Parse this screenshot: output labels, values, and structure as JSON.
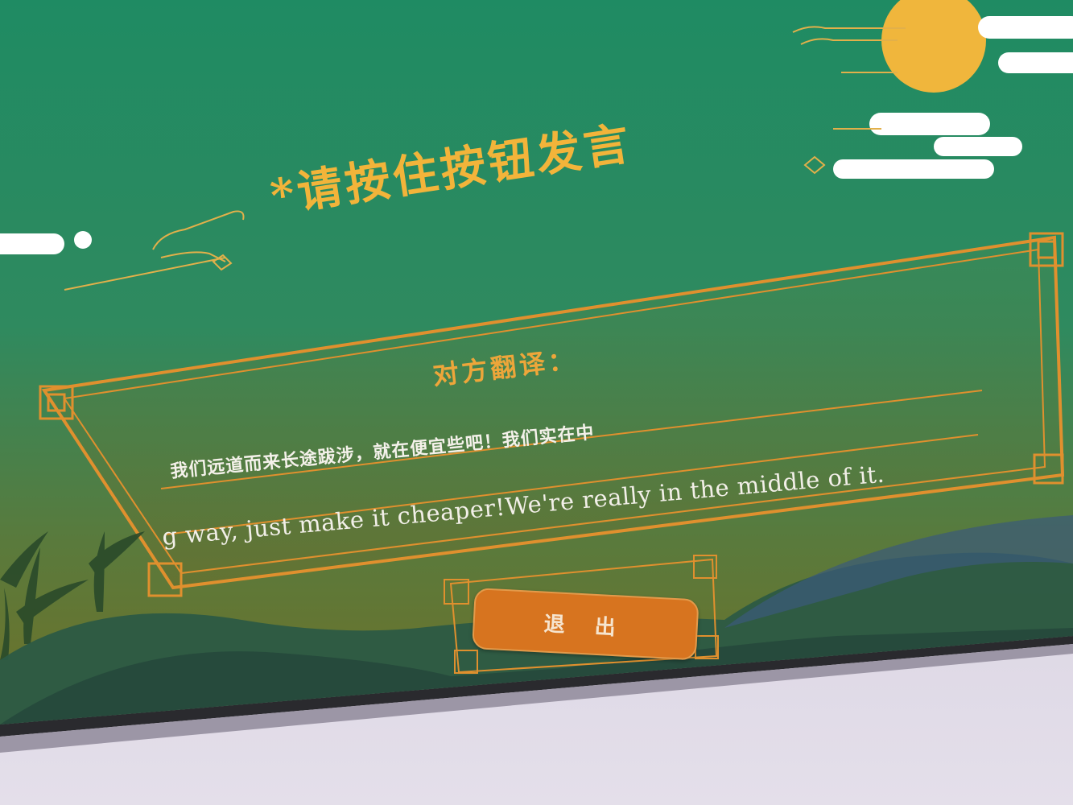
{
  "screen": {
    "prompt": "*请按住按钮发言",
    "translation_title": "对方翻译：",
    "translation_zh": "我们远道而来长途跋涉，就在便宜些吧！我们实在中",
    "translation_en_line1": "g way, just make it cheaper!We're really in the middle of it.",
    "exit_button_label": "退 出"
  },
  "colors": {
    "background_green": "#2d8c64",
    "gold": "#f2b43a",
    "orange_button": "#d7741f",
    "moon": "#f0b63c"
  },
  "icons": [
    "moon-icon",
    "cloud-icon",
    "bamboo-icon",
    "mountain-icon",
    "scroll-ornament-icon"
  ]
}
